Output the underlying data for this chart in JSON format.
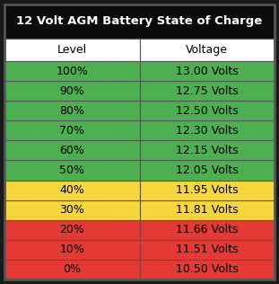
{
  "title": "12 Volt AGM Battery State of Charge",
  "title_bg": "#0a0a0a",
  "title_color": "#ffffff",
  "header_bg": "#ffffff",
  "header_color": "#000000",
  "col_headers": [
    "Level",
    "Voltage"
  ],
  "rows": [
    {
      "level": "100%",
      "voltage": "13.00 Volts",
      "color": "#4caf50"
    },
    {
      "level": "90%",
      "voltage": "12.75 Volts",
      "color": "#4caf50"
    },
    {
      "level": "80%",
      "voltage": "12.50 Volts",
      "color": "#4caf50"
    },
    {
      "level": "70%",
      "voltage": "12.30 Volts",
      "color": "#4caf50"
    },
    {
      "level": "60%",
      "voltage": "12.15 Volts",
      "color": "#4caf50"
    },
    {
      "level": "50%",
      "voltage": "12.05 Volts",
      "color": "#4caf50"
    },
    {
      "level": "40%",
      "voltage": "11.95 Volts",
      "color": "#f5d63d"
    },
    {
      "level": "30%",
      "voltage": "11.81 Volts",
      "color": "#f5d63d"
    },
    {
      "level": "20%",
      "voltage": "11.66 Volts",
      "color": "#e53935"
    },
    {
      "level": "10%",
      "voltage": "11.51 Volts",
      "color": "#e53935"
    },
    {
      "level": "0%",
      "voltage": "10.50 Volts",
      "color": "#e53935"
    }
  ],
  "outer_border": "#1a1a1a",
  "cell_border": "#555555",
  "text_color": "#000000",
  "font_size_title": 9.5,
  "font_size_header": 9.0,
  "font_size_data": 9.0,
  "fig_width": 3.11,
  "fig_height": 3.16,
  "dpi": 100
}
